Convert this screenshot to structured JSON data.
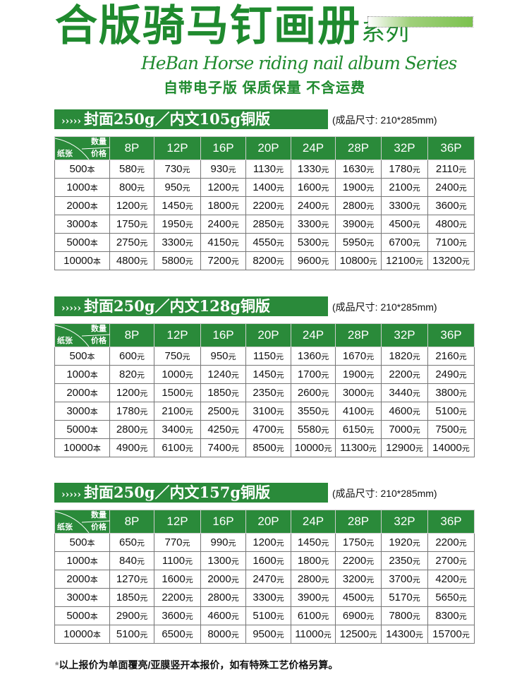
{
  "header": {
    "title": "合版骑马钉画册",
    "title_suffix": "系列",
    "subtitle_en": "HeBan Horse riding nail album Series",
    "slogan": "自带电子版  保质保量  不含运费"
  },
  "colors": {
    "brand_green": "#2a8a3a",
    "title_green": "#1f8a2e"
  },
  "table_header": {
    "corner_qty": "数量",
    "corner_paper": "纸张",
    "corner_price": "价格",
    "columns": [
      "8P",
      "12P",
      "16P",
      "20P",
      "24P",
      "28P",
      "32P",
      "36P"
    ],
    "price_unit": "元",
    "qty_unit": "本"
  },
  "sections": [
    {
      "title": "封面250g／内文105g铜版",
      "arrows": "›››››",
      "size_note": "(成品尺寸: 210*285mm)",
      "rows": [
        {
          "qty": "500",
          "prices": [
            "580",
            "730",
            "930",
            "1130",
            "1330",
            "1630",
            "1780",
            "2110"
          ]
        },
        {
          "qty": "1000",
          "prices": [
            "800",
            "950",
            "1200",
            "1400",
            "1600",
            "1900",
            "2100",
            "2400"
          ]
        },
        {
          "qty": "2000",
          "prices": [
            "1200",
            "1450",
            "1800",
            "2200",
            "2400",
            "2800",
            "3300",
            "3600"
          ]
        },
        {
          "qty": "3000",
          "prices": [
            "1750",
            "1950",
            "2400",
            "2850",
            "3300",
            "3900",
            "4500",
            "4800"
          ]
        },
        {
          "qty": "5000",
          "prices": [
            "2750",
            "3300",
            "4150",
            "4550",
            "5300",
            "5950",
            "6700",
            "7100"
          ]
        },
        {
          "qty": "10000",
          "prices": [
            "4800",
            "5800",
            "7200",
            "8200",
            "9600",
            "10800",
            "12100",
            "13200"
          ]
        }
      ]
    },
    {
      "title": "封面250g／内文128g铜版",
      "arrows": "›››››",
      "size_note": "(成品尺寸: 210*285mm)",
      "rows": [
        {
          "qty": "500",
          "prices": [
            "600",
            "750",
            "950",
            "1150",
            "1360",
            "1670",
            "1820",
            "2160"
          ]
        },
        {
          "qty": "1000",
          "prices": [
            "820",
            "1000",
            "1240",
            "1450",
            "1700",
            "1900",
            "2200",
            "2490"
          ]
        },
        {
          "qty": "2000",
          "prices": [
            "1200",
            "1500",
            "1850",
            "2350",
            "2600",
            "3000",
            "3440",
            "3800"
          ]
        },
        {
          "qty": "3000",
          "prices": [
            "1780",
            "2100",
            "2500",
            "3100",
            "3550",
            "4100",
            "4600",
            "5100"
          ]
        },
        {
          "qty": "5000",
          "prices": [
            "2800",
            "3400",
            "4250",
            "4700",
            "5580",
            "6150",
            "7000",
            "7500"
          ]
        },
        {
          "qty": "10000",
          "prices": [
            "4900",
            "6100",
            "7400",
            "8500",
            "10000",
            "11300",
            "12900",
            "14000"
          ]
        }
      ]
    },
    {
      "title": "封面250g／内文157g铜版",
      "arrows": "›››››",
      "size_note": "(成品尺寸: 210*285mm)",
      "rows": [
        {
          "qty": "500",
          "prices": [
            "650",
            "770",
            "990",
            "1200",
            "1450",
            "1750",
            "1920",
            "2200"
          ]
        },
        {
          "qty": "1000",
          "prices": [
            "840",
            "1100",
            "1300",
            "1600",
            "1800",
            "2200",
            "2350",
            "2700"
          ]
        },
        {
          "qty": "2000",
          "prices": [
            "1270",
            "1600",
            "2000",
            "2470",
            "2800",
            "3200",
            "3700",
            "4200"
          ]
        },
        {
          "qty": "3000",
          "prices": [
            "1850",
            "2200",
            "2800",
            "3300",
            "3900",
            "4500",
            "5170",
            "5650"
          ]
        },
        {
          "qty": "5000",
          "prices": [
            "2900",
            "3600",
            "4600",
            "5100",
            "6100",
            "6900",
            "7800",
            "8300"
          ]
        },
        {
          "qty": "10000",
          "prices": [
            "5100",
            "6500",
            "8000",
            "9500",
            "11000",
            "12500",
            "14300",
            "15700"
          ]
        }
      ]
    }
  ],
  "footnote": {
    "star": "*",
    "text": "以上报价为单面覆亮/亚膜竖开本报价，如有特殊工艺价格另算。"
  }
}
